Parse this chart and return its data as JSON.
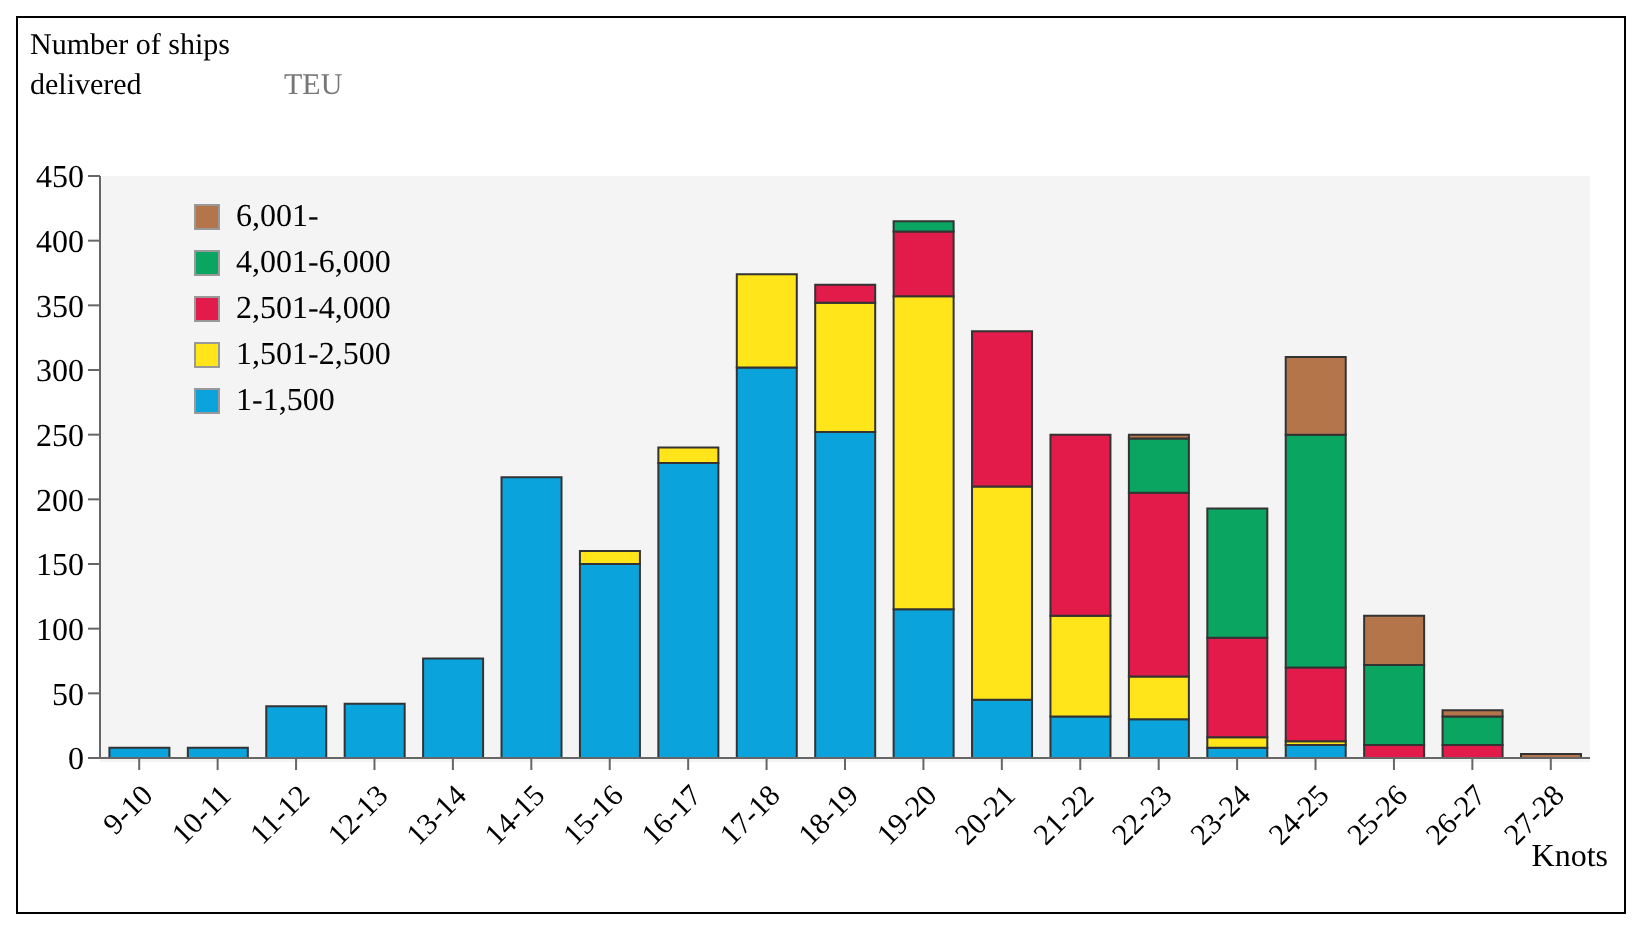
{
  "chart_data": {
    "type": "bar",
    "stacked": true,
    "ylabel": "Number of ships delivered",
    "legend_title": "TEU",
    "xlabel": "Knots",
    "categories": [
      "9-10",
      "10-11",
      "11-12",
      "12-13",
      "13-14",
      "14-15",
      "15-16",
      "16-17",
      "17-18",
      "18-19",
      "19-20",
      "20-21",
      "21-22",
      "22-23",
      "23-24",
      "24-25",
      "25-26",
      "26-27",
      "27-28"
    ],
    "series": [
      {
        "name": "1-1,500",
        "color": "#0aa3dc",
        "values": [
          8,
          8,
          40,
          42,
          77,
          217,
          150,
          228,
          302,
          252,
          115,
          45,
          32,
          30,
          8,
          10,
          0,
          0,
          0
        ]
      },
      {
        "name": "1,501-2,500",
        "color": "#ffe51a",
        "values": [
          0,
          0,
          0,
          0,
          0,
          0,
          10,
          12,
          72,
          100,
          242,
          165,
          78,
          33,
          8,
          3,
          0,
          0,
          0
        ]
      },
      {
        "name": "2,501-4,000",
        "color": "#e31b4b",
        "values": [
          0,
          0,
          0,
          0,
          0,
          0,
          0,
          0,
          0,
          14,
          50,
          120,
          140,
          142,
          77,
          57,
          10,
          10,
          0
        ]
      },
      {
        "name": "4,001-6,000",
        "color": "#0aa560",
        "values": [
          0,
          0,
          0,
          0,
          0,
          0,
          0,
          0,
          0,
          0,
          8,
          0,
          0,
          42,
          100,
          180,
          62,
          22,
          0
        ]
      },
      {
        "name": "6,001-",
        "color": "#b5754b",
        "values": [
          0,
          0,
          0,
          0,
          0,
          0,
          0,
          0,
          0,
          0,
          0,
          0,
          0,
          3,
          0,
          60,
          38,
          5,
          3
        ]
      }
    ],
    "ylim": [
      0,
      450
    ],
    "yticks": [
      0,
      50,
      100,
      150,
      200,
      250,
      300,
      350,
      400,
      450
    ],
    "legend": "top left"
  }
}
